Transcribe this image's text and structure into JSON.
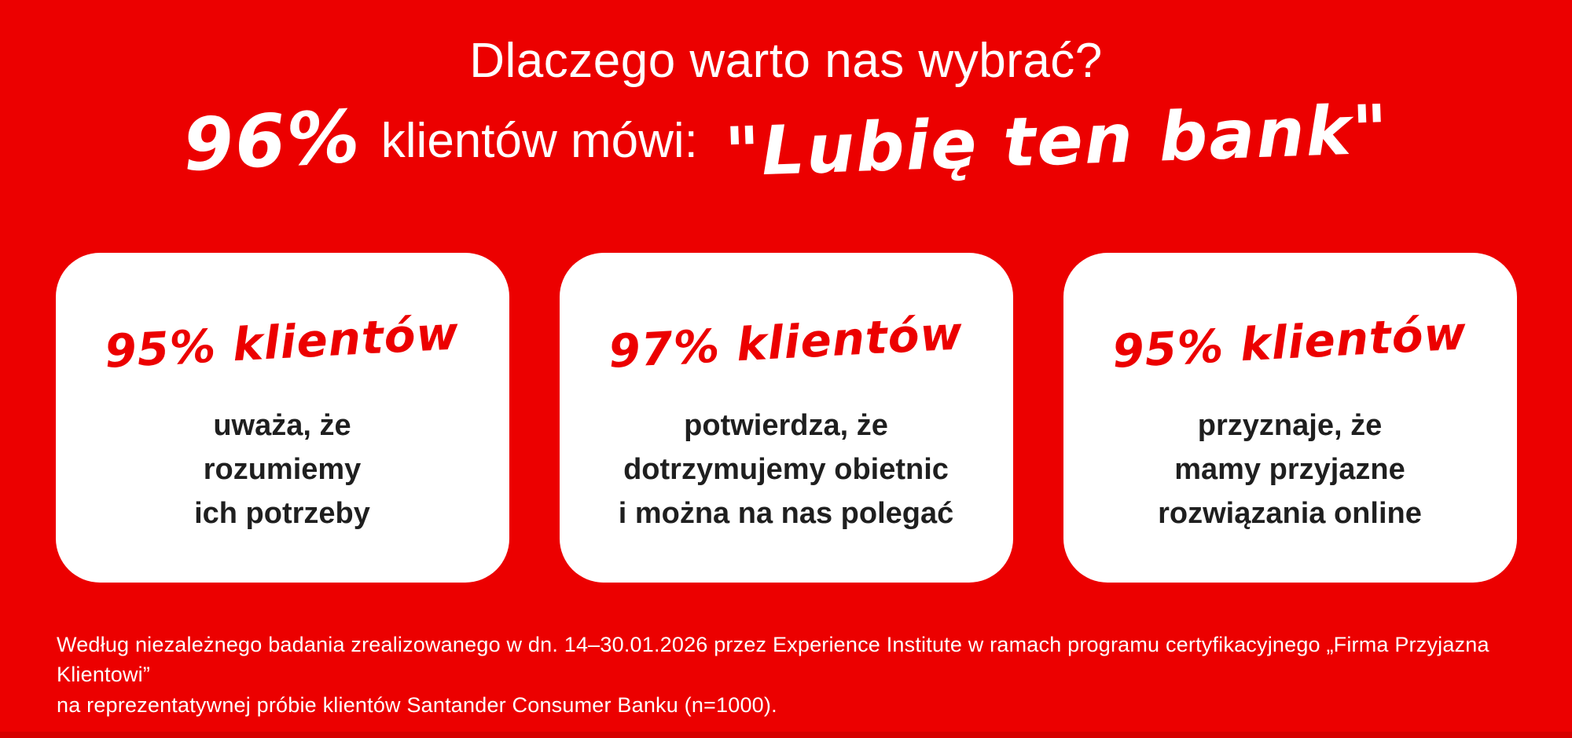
{
  "theme": {
    "background_red": "#EC0000",
    "accent_red": "#EC0000",
    "card_background": "#FFFFFF",
    "body_text_color": "#1F1F1F",
    "bottom_strip_color": "#D60000"
  },
  "header": {
    "title": "Dlaczego warto nas wybrać?",
    "stat_value": "96%",
    "stat_label": "klientów mówi:",
    "quote": "\"Lubię ten bank\""
  },
  "cards": [
    {
      "stat": "95% klientów",
      "lines": [
        "uważa, że",
        "rozumiemy",
        "ich potrzeby"
      ]
    },
    {
      "stat": "97% klientów",
      "lines": [
        "potwierdza, że",
        "dotrzymujemy obietnic",
        "i można na nas polegać"
      ]
    },
    {
      "stat": "95% klientów",
      "lines": [
        "przyznaje, że",
        "mamy przyjazne",
        "rozwiązania online"
      ]
    }
  ],
  "footnote": {
    "line1": "Według niezależnego badania zrealizowanego w dn. 14–30.01.2026 przez Experience Institute w ramach programu certyfikacyjnego „Firma Przyjazna Klientowi”",
    "line2": "na reprezentatywnej próbie klientów Santander Consumer Banku (n=1000)."
  }
}
